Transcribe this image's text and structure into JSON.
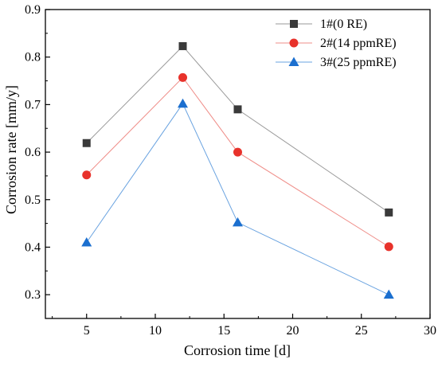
{
  "chart_data": {
    "type": "line",
    "title": "",
    "xlabel": "Corrosion time [d]",
    "ylabel": "Corrosion rate [mm/y]",
    "xlim": [
      2,
      30
    ],
    "ylim": [
      0.25,
      0.9
    ],
    "xticks": [
      5,
      10,
      15,
      20,
      25,
      30
    ],
    "yticks": [
      0.3,
      0.4,
      0.5,
      0.6,
      0.7,
      0.8,
      0.9
    ],
    "grid": false,
    "legend_position": "top-right",
    "x": [
      5,
      12,
      16,
      27
    ],
    "series": [
      {
        "name": "1#(0 RE)",
        "values": [
          0.619,
          0.823,
          0.69,
          0.473
        ],
        "color": "#3a3a3a",
        "line_color": "#9a9a9a",
        "marker": "square"
      },
      {
        "name": "2#(14 ppmRE)",
        "values": [
          0.552,
          0.757,
          0.6,
          0.401
        ],
        "color": "#e8322b",
        "line_color": "#ef8d88",
        "marker": "circle"
      },
      {
        "name": "3#(25 ppmRE)",
        "values": [
          0.41,
          0.702,
          0.452,
          0.3
        ],
        "color": "#1b6fcf",
        "line_color": "#6aa3e0",
        "marker": "triangle"
      }
    ]
  }
}
